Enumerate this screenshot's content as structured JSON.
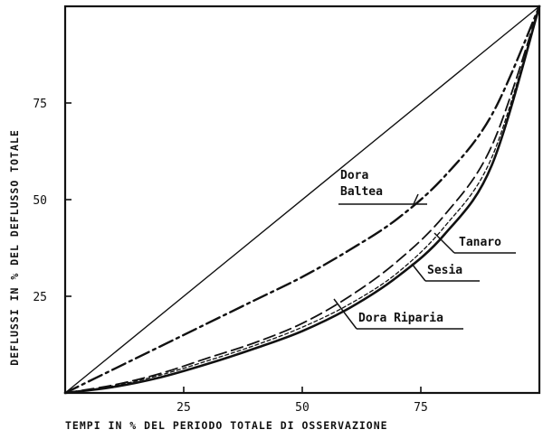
{
  "chart_data": {
    "type": "line",
    "xlabel": "TEMPI IN % DEL PERIODO TOTALE DI OSSERVAZIONE",
    "ylabel": "DEFLUSSI IN % DEL DEFLUSSO TOTALE",
    "xlim": [
      0,
      100
    ],
    "ylim": [
      0,
      100
    ],
    "x_ticks": [
      25,
      50,
      75
    ],
    "y_ticks": [
      25,
      50,
      75
    ],
    "grid": false,
    "series": [
      {
        "name": "",
        "style": "solid-thin",
        "x": [
          0,
          100
        ],
        "y": [
          0,
          100
        ]
      },
      {
        "name": "Dora Baltea",
        "style": "dash-dot",
        "x": [
          0,
          10,
          20,
          30,
          40,
          50,
          60,
          70,
          80,
          90,
          100
        ],
        "y": [
          0,
          6,
          12,
          18,
          24,
          30,
          37,
          45,
          56,
          72,
          100
        ]
      },
      {
        "name": "Tanaro",
        "style": "dashed-long",
        "x": [
          0,
          10,
          20,
          30,
          40,
          50,
          60,
          70,
          80,
          90,
          100
        ],
        "y": [
          0,
          2,
          5,
          9,
          13,
          18,
          25,
          34,
          46,
          64,
          100
        ]
      },
      {
        "name": "Sesia",
        "style": "solid-thick",
        "x": [
          0,
          10,
          20,
          30,
          40,
          50,
          60,
          70,
          80,
          90,
          100
        ],
        "y": [
          0,
          1.5,
          4,
          7.5,
          11.5,
          16,
          22,
          30,
          41,
          59,
          100
        ]
      },
      {
        "name": "Dora Riparia",
        "style": "dashed-short",
        "x": [
          0,
          10,
          20,
          30,
          40,
          50,
          60,
          70,
          80,
          90,
          100
        ],
        "y": [
          0,
          1.8,
          4.6,
          8.3,
          12.3,
          17,
          23,
          31,
          43,
          61,
          100
        ]
      }
    ],
    "annotations": [
      {
        "series": "Dora Baltea",
        "lines": [
          "Dora",
          "Baltea"
        ]
      },
      {
        "series": "Tanaro",
        "lines": [
          "Tanaro"
        ]
      },
      {
        "series": "Sesia",
        "lines": [
          "Sesia"
        ]
      },
      {
        "series": "Dora Riparia",
        "lines": [
          "Dora Riparia"
        ]
      }
    ]
  }
}
